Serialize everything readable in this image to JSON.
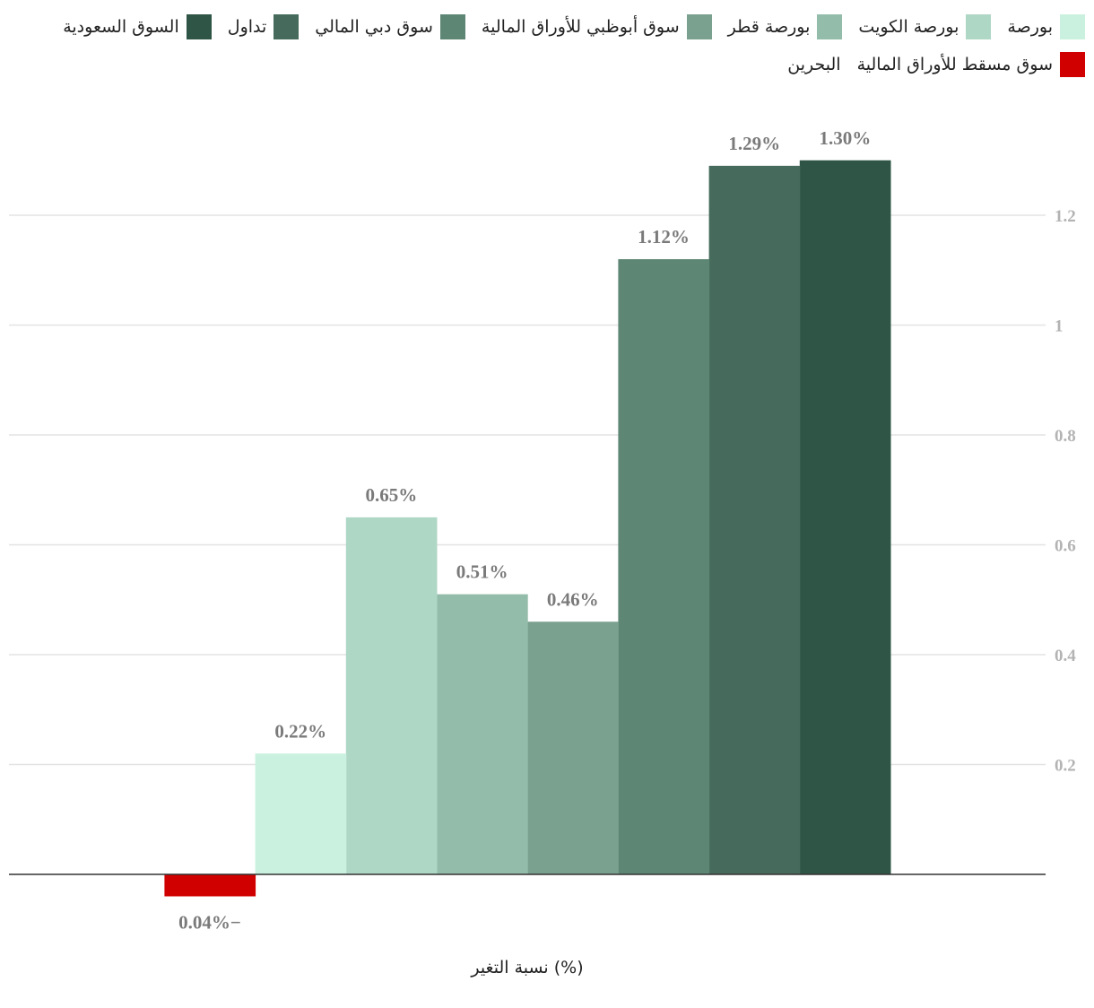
{
  "chart_data": {
    "type": "bar",
    "xlabel": "نسبة التغير (%)",
    "ylabel": "",
    "ylim": [
      -0.06,
      1.4
    ],
    "yticks": [
      0.2,
      0.4,
      0.6,
      0.8,
      1,
      1.2
    ],
    "ytick_labels": [
      "0.2",
      "0.4",
      "0.6",
      "0.8",
      "1",
      "1.2"
    ],
    "grid": true,
    "legend_position": "top",
    "series": [
      {
        "name": "السوق السعودية",
        "value": 1.3,
        "label": "1.30%",
        "color": "#2f5546"
      },
      {
        "name": "تداول",
        "value": 1.29,
        "label": "1.29%",
        "color": "#466b5c"
      },
      {
        "name": "سوق دبي المالي",
        "value": 1.12,
        "label": "1.12%",
        "color": "#5e8675"
      },
      {
        "name": "سوق أبوظبي للأوراق المالية",
        "value": 0.46,
        "label": "0.46%",
        "color": "#7aa08f"
      },
      {
        "name": "بورصة قطر",
        "value": 0.51,
        "label": "0.51%",
        "color": "#94bcab"
      },
      {
        "name": "بورصة الكويت",
        "value": 0.65,
        "label": "0.65%",
        "color": "#afd7c6"
      },
      {
        "name": "بورصة",
        "value": 0.22,
        "label": "0.22%",
        "color": "#caf1df"
      },
      {
        "name": "سوق مسقط للأوراق المالية",
        "value": -0.04,
        "label": "0.04%−",
        "color": "#d00000"
      },
      {
        "name": "البحرين",
        "value": null,
        "label": "",
        "color": ""
      }
    ]
  }
}
